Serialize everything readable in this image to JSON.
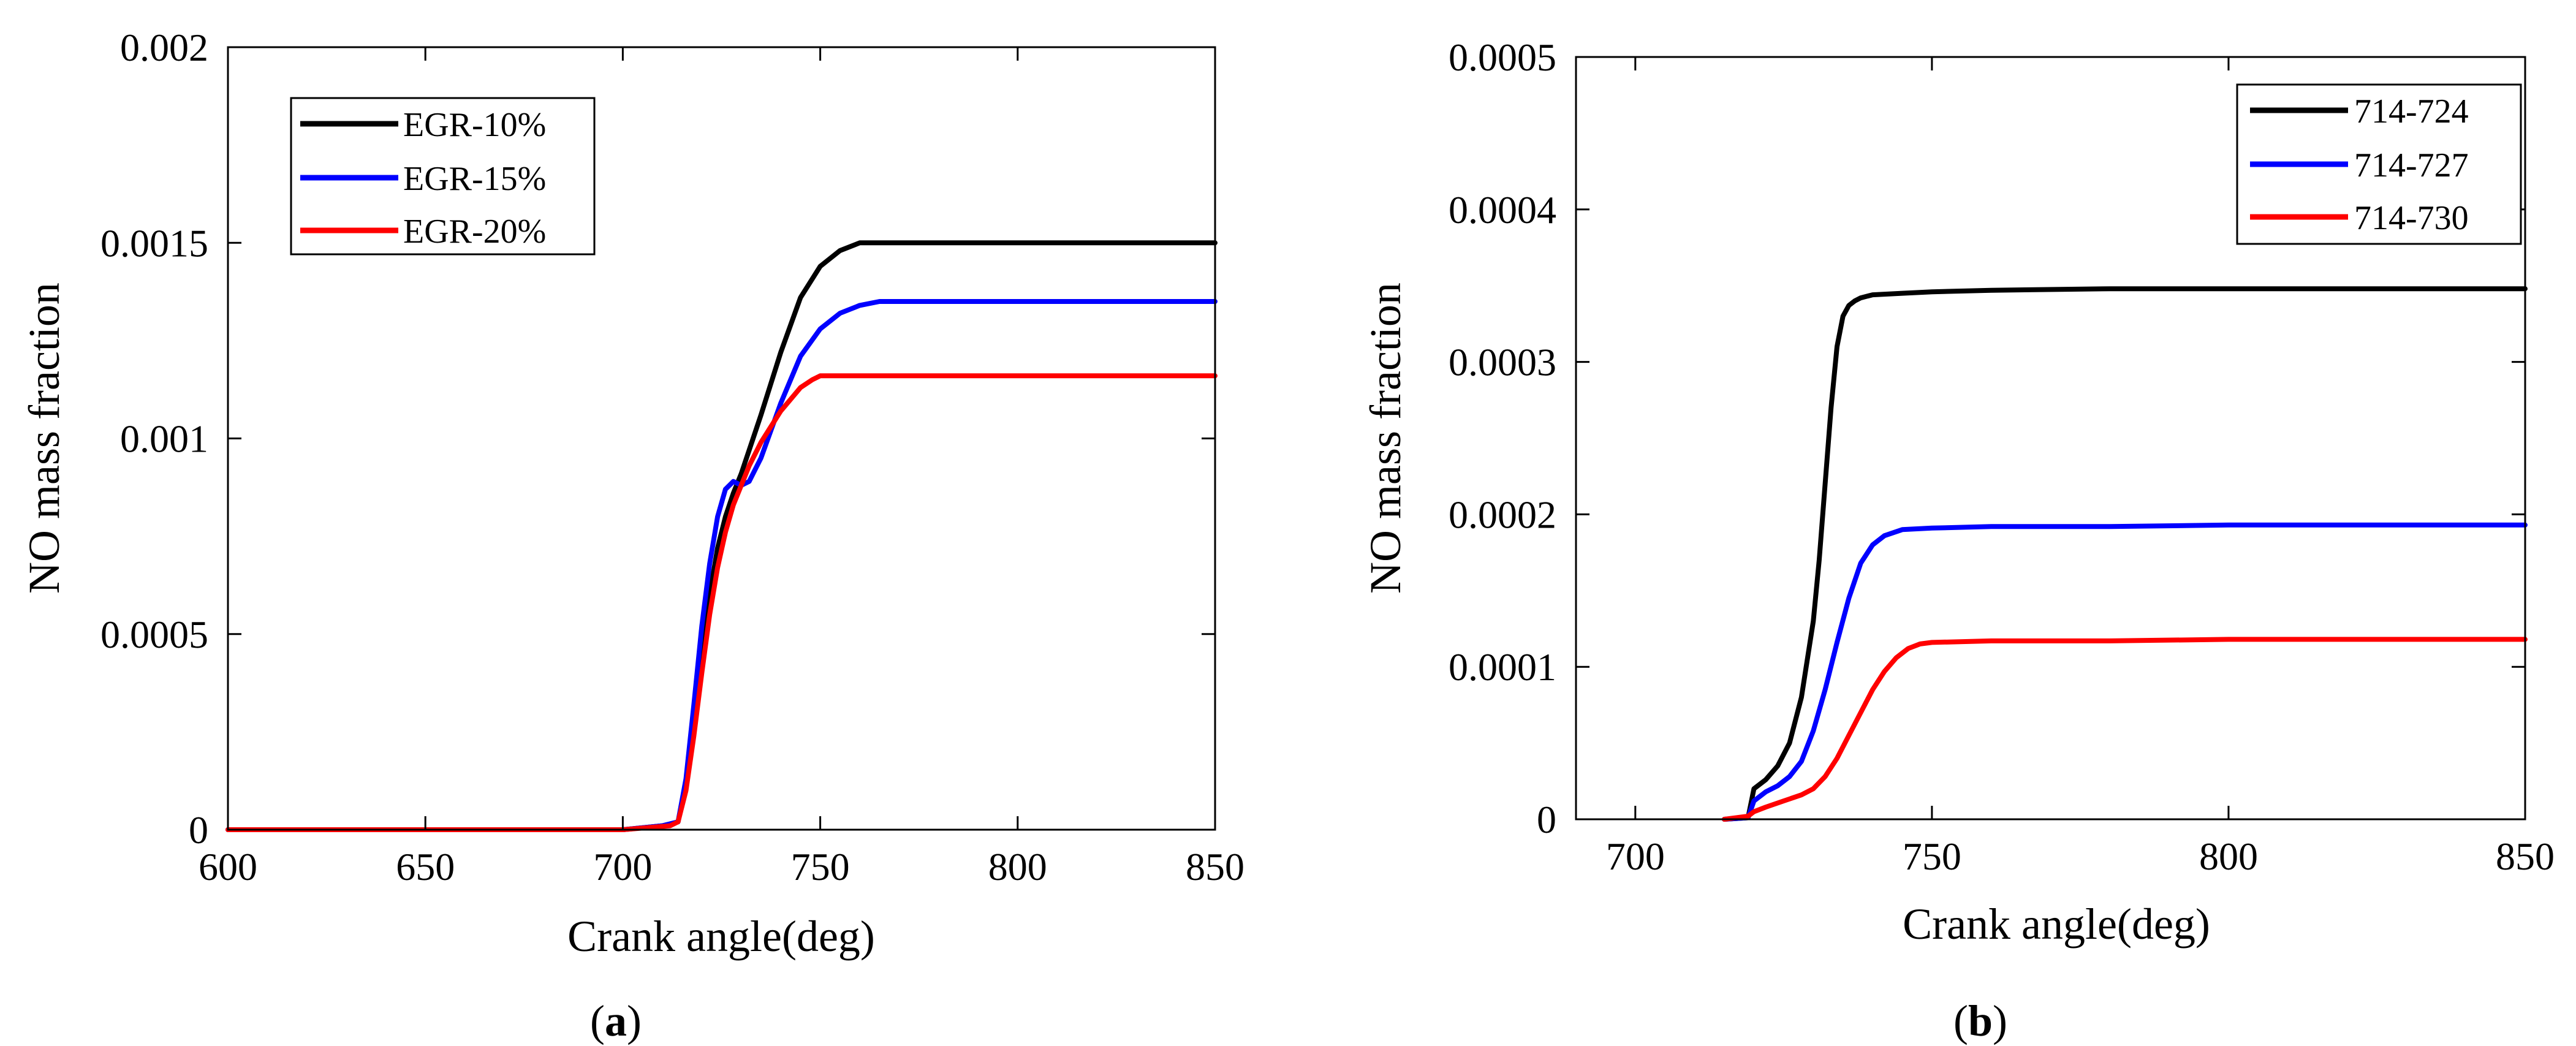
{
  "figure": {
    "colors": {
      "black": "#000000",
      "blue": "#0000ff",
      "red": "#ff0000",
      "axis": "#000000",
      "background": "#ffffff"
    }
  },
  "chart_data": [
    {
      "type": "line",
      "id": "a",
      "caption": {
        "open": "(",
        "letter": "a",
        "close": ")"
      },
      "title": "",
      "xlabel": "Crank angle(deg)",
      "ylabel": "NO mass fraction",
      "xlim": [
        600,
        850
      ],
      "ylim": [
        0,
        0.002
      ],
      "xticks": [
        600,
        650,
        700,
        750,
        800,
        850
      ],
      "xtick_labels": [
        "600",
        "650",
        "700",
        "750",
        "800",
        "850"
      ],
      "yticks": [
        0,
        0.0005,
        0.001,
        0.0015,
        0.002
      ],
      "ytick_labels": [
        "0",
        "0.0005",
        "0.001",
        "0.0015",
        "0.002"
      ],
      "grid": false,
      "legend_position": "top-left",
      "series": [
        {
          "name": "EGR-10%",
          "color": "#000000",
          "x": [
            600,
            700,
            710,
            714,
            716,
            718,
            720,
            722,
            724,
            726,
            728,
            730,
            732,
            735,
            740,
            745,
            750,
            755,
            760,
            765,
            770,
            780,
            800,
            850
          ],
          "y": [
            0,
            0,
            1e-05,
            2e-05,
            0.00012,
            0.00028,
            0.00045,
            0.0006,
            0.00072,
            0.0008,
            0.00086,
            0.00091,
            0.00097,
            0.00106,
            0.00122,
            0.00136,
            0.00144,
            0.00148,
            0.0015,
            0.0015,
            0.0015,
            0.0015,
            0.0015,
            0.0015
          ]
        },
        {
          "name": "EGR-15%",
          "color": "#0000ff",
          "x": [
            600,
            700,
            710,
            714,
            716,
            718,
            720,
            722,
            724,
            726,
            728,
            730,
            732,
            735,
            740,
            745,
            750,
            755,
            760,
            765,
            770,
            780,
            800,
            850
          ],
          "y": [
            0,
            0,
            1e-05,
            2e-05,
            0.00013,
            0.00032,
            0.00052,
            0.00068,
            0.0008,
            0.00087,
            0.00089,
            0.00088,
            0.00089,
            0.00095,
            0.00109,
            0.00121,
            0.00128,
            0.00132,
            0.00134,
            0.00135,
            0.00135,
            0.00135,
            0.00135,
            0.00135
          ]
        },
        {
          "name": "EGR-20%",
          "color": "#ff0000",
          "x": [
            600,
            700,
            712,
            714,
            716,
            718,
            720,
            722,
            724,
            726,
            728,
            730,
            732,
            735,
            740,
            745,
            748,
            750,
            760,
            780,
            800,
            850
          ],
          "y": [
            0,
            0,
            1e-05,
            2e-05,
            0.0001,
            0.00024,
            0.0004,
            0.00055,
            0.00067,
            0.00076,
            0.00083,
            0.00088,
            0.00093,
            0.00099,
            0.00107,
            0.00113,
            0.00115,
            0.00116,
            0.00116,
            0.00116,
            0.00116,
            0.00116
          ]
        }
      ]
    },
    {
      "type": "line",
      "id": "b",
      "caption": {
        "open": "(",
        "letter": "b",
        "close": ")"
      },
      "title": "",
      "xlabel": "Crank angle(deg)",
      "ylabel": "NO mass fraction",
      "xlim": [
        690,
        850
      ],
      "ylim": [
        0,
        0.0005
      ],
      "xticks": [
        700,
        750,
        800,
        850
      ],
      "xtick_labels": [
        "700",
        "750",
        "800",
        "850"
      ],
      "yticks": [
        0,
        0.0001,
        0.0002,
        0.0003,
        0.0004,
        0.0005
      ],
      "ytick_labels": [
        "0",
        "0.0001",
        "0.0002",
        "0.0003",
        "0.0004",
        "0.0005"
      ],
      "grid": false,
      "legend_position": "top-right",
      "series": [
        {
          "name": "714-724",
          "color": "#000000",
          "x": [
            715,
            719,
            720,
            722,
            724,
            726,
            728,
            730,
            731,
            732,
            733,
            734,
            735,
            736,
            737,
            738,
            740,
            745,
            750,
            760,
            780,
            800,
            850
          ],
          "y": [
            0,
            1e-06,
            2e-05,
            2.6e-05,
            3.5e-05,
            5e-05,
            8e-05,
            0.00013,
            0.00017,
            0.00022,
            0.00027,
            0.00031,
            0.00033,
            0.000337,
            0.00034,
            0.000342,
            0.000344,
            0.000345,
            0.000346,
            0.000347,
            0.000348,
            0.000348,
            0.000348
          ]
        },
        {
          "name": "714-727",
          "color": "#0000ff",
          "x": [
            715,
            719,
            720,
            722,
            724,
            726,
            728,
            730,
            732,
            734,
            736,
            738,
            740,
            742,
            745,
            750,
            760,
            780,
            800,
            850
          ],
          "y": [
            0,
            1e-06,
            1.2e-05,
            1.8e-05,
            2.2e-05,
            2.8e-05,
            3.8e-05,
            5.8e-05,
            8.5e-05,
            0.000116,
            0.000145,
            0.000168,
            0.00018,
            0.000186,
            0.00019,
            0.000191,
            0.000192,
            0.000192,
            0.000193,
            0.000193
          ]
        },
        {
          "name": "714-730",
          "color": "#ff0000",
          "x": [
            715,
            719,
            720,
            722,
            725,
            728,
            730,
            732,
            734,
            736,
            738,
            740,
            742,
            744,
            746,
            748,
            750,
            760,
            780,
            800,
            850
          ],
          "y": [
            0,
            2e-06,
            5e-06,
            8e-06,
            1.2e-05,
            1.6e-05,
            2e-05,
            2.8e-05,
            4e-05,
            5.5e-05,
            7e-05,
            8.5e-05,
            9.7e-05,
            0.000106,
            0.000112,
            0.000115,
            0.000116,
            0.000117,
            0.000117,
            0.000118,
            0.000118
          ]
        }
      ]
    }
  ]
}
